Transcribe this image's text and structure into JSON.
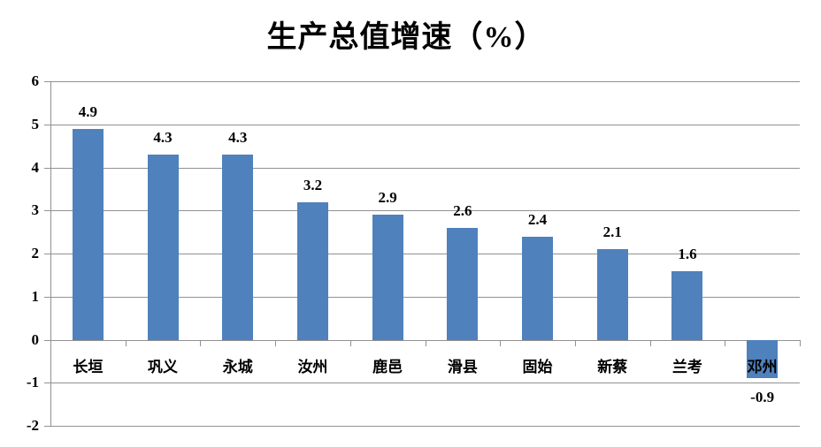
{
  "chart_data": {
    "type": "bar",
    "title": "生产总值增速（%）",
    "categories": [
      "长垣",
      "巩义",
      "永城",
      "汝州",
      "鹿邑",
      "滑县",
      "固始",
      "新蔡",
      "兰考",
      "邓州"
    ],
    "values": [
      4.9,
      4.3,
      4.3,
      3.2,
      2.9,
      2.6,
      2.4,
      2.1,
      1.6,
      -0.9
    ],
    "value_labels": [
      "4.9",
      "4.3",
      "4.3",
      "3.2",
      "2.9",
      "2.6",
      "2.4",
      "2.1",
      "1.6",
      "-0.9"
    ],
    "xlabel": "",
    "ylabel": "",
    "ylim": [
      -2,
      6
    ],
    "yticks": [
      6,
      5,
      4,
      3,
      2,
      1,
      0,
      -1,
      -2
    ],
    "grid": true,
    "legend": false,
    "colors": {
      "bar": "#4F81BD",
      "gridline": "#919191",
      "axis": "#919191",
      "text": "#000000",
      "background": "#FFFFFF"
    }
  }
}
